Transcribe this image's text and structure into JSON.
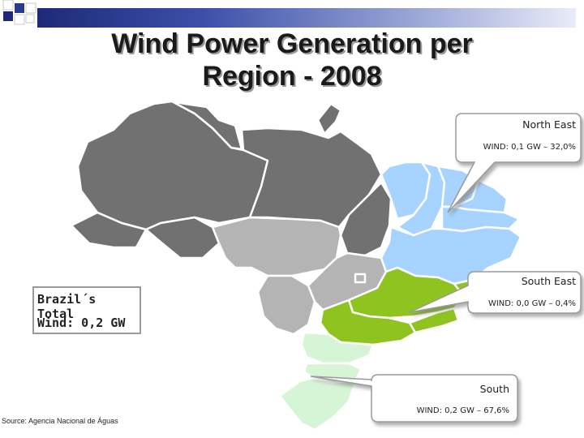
{
  "title_line1": "Wind Power Generation per",
  "title_line2": "Region - 2008",
  "callouts": {
    "north_east": {
      "region": "North East",
      "value": "WIND: 0,1 GW – 32,0%"
    },
    "south_east": {
      "region": "South East",
      "value": "WIND: 0,0 GW – 0,4%"
    },
    "south": {
      "region": "South",
      "value": "WIND: 0,2 GW – 67,6%"
    }
  },
  "total": {
    "label": "Brazil´s Total",
    "value": "Wind: 0,2 GW"
  },
  "source": "Source: Agencia Nacional de Águas",
  "colors": {
    "north": "#717171",
    "center_west": "#b4b4b4",
    "north_east": "#a6d3ff",
    "south_east": "#8fc31f",
    "south": "#d6f5d6",
    "topbar": "#1e2a78"
  }
}
